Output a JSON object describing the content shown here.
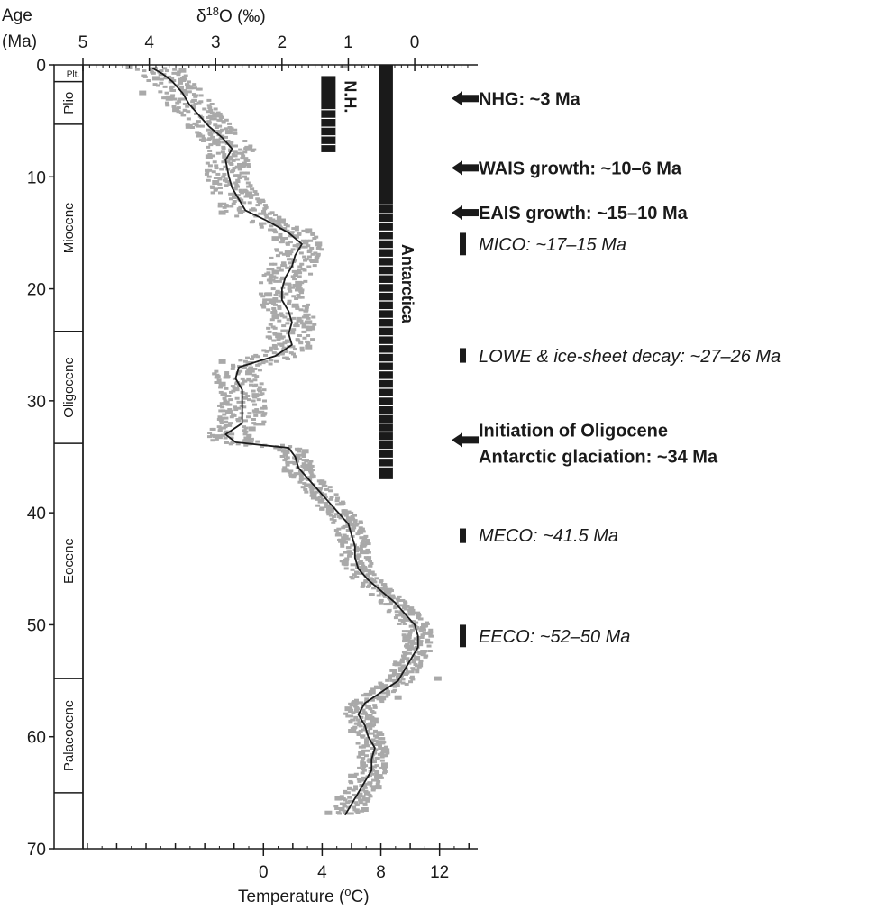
{
  "chart_data": {
    "type": "line",
    "axes": {
      "age_title": "Age",
      "age_unit": "(Ma)",
      "age_ticks": [
        0,
        10,
        20,
        30,
        40,
        50,
        60,
        70
      ],
      "age_range": [
        0,
        70
      ],
      "d18o_prefix": "δ",
      "d18o_sup": "18",
      "d18o_suffix": "O (‰)",
      "d18o_ticks": [
        5,
        4,
        3,
        2,
        1,
        0
      ],
      "d18o_range": [
        5,
        -0.95
      ],
      "temperature_title_prefix": "Temperature (",
      "temperature_title_sup": "o",
      "temperature_title_suffix": "C)",
      "temperature_ticks": [
        0,
        4,
        8,
        12
      ],
      "temperature_range": [
        -12.3,
        14.6
      ]
    },
    "epochs": [
      {
        "name": "Plt.",
        "start": 0,
        "end": 1.5
      },
      {
        "name": "Plio",
        "start": 1.5,
        "end": 5.3
      },
      {
        "name": "Miocene",
        "start": 5.3,
        "end": 23.8
      },
      {
        "name": "Oligocene",
        "start": 23.8,
        "end": 33.8
      },
      {
        "name": "Eocene",
        "start": 33.8,
        "end": 54.8
      },
      {
        "name": "Palaeocene",
        "start": 54.8,
        "end": 65.0
      },
      {
        "name": "",
        "start": 65.0,
        "end": 70
      }
    ],
    "series": [
      {
        "type": "smoothed_line",
        "color": "#1a1a1a",
        "points": [
          [
            0.3,
            3.95
          ],
          [
            0.8,
            3.8
          ],
          [
            1.5,
            3.65
          ],
          [
            2.5,
            3.5
          ],
          [
            3.5,
            3.4
          ],
          [
            4.5,
            3.25
          ],
          [
            5.5,
            3.1
          ],
          [
            6.5,
            2.9
          ],
          [
            7.5,
            2.75
          ],
          [
            8.5,
            2.85
          ],
          [
            10,
            2.8
          ],
          [
            11,
            2.75
          ],
          [
            12,
            2.65
          ],
          [
            13,
            2.55
          ],
          [
            14,
            2.2
          ],
          [
            15,
            1.9
          ],
          [
            16,
            1.7
          ],
          [
            17,
            1.8
          ],
          [
            18,
            1.85
          ],
          [
            19,
            1.95
          ],
          [
            20,
            2.0
          ],
          [
            21,
            2.0
          ],
          [
            22,
            1.9
          ],
          [
            23,
            1.85
          ],
          [
            24,
            1.9
          ],
          [
            25,
            1.85
          ],
          [
            26,
            2.1
          ],
          [
            27,
            2.65
          ],
          [
            28,
            2.7
          ],
          [
            29,
            2.6
          ],
          [
            30,
            2.6
          ],
          [
            31,
            2.6
          ],
          [
            32,
            2.6
          ],
          [
            33,
            2.85
          ],
          [
            33.7,
            2.7
          ],
          [
            34.2,
            1.9
          ],
          [
            35,
            1.8
          ],
          [
            36,
            1.75
          ],
          [
            37,
            1.6
          ],
          [
            38,
            1.45
          ],
          [
            39,
            1.3
          ],
          [
            40,
            1.15
          ],
          [
            41,
            1.0
          ],
          [
            42,
            0.95
          ],
          [
            43,
            0.9
          ],
          [
            44,
            0.9
          ],
          [
            45,
            0.85
          ],
          [
            46,
            0.7
          ],
          [
            47,
            0.5
          ],
          [
            48,
            0.3
          ],
          [
            49,
            0.15
          ],
          [
            50,
            0.0
          ],
          [
            51,
            -0.05
          ],
          [
            52,
            -0.05
          ],
          [
            53,
            0.05
          ],
          [
            54,
            0.15
          ],
          [
            55,
            0.25
          ],
          [
            56,
            0.5
          ],
          [
            57,
            0.75
          ],
          [
            58,
            0.85
          ],
          [
            59,
            0.75
          ],
          [
            60,
            0.7
          ],
          [
            61,
            0.6
          ],
          [
            62,
            0.65
          ],
          [
            63,
            0.65
          ],
          [
            64,
            0.75
          ],
          [
            65,
            0.85
          ],
          [
            66,
            0.95
          ],
          [
            67,
            1.05
          ]
        ]
      },
      {
        "type": "scatter_band",
        "color": "#a9a9a9",
        "points": [
          [
            0.2,
            4.3
          ],
          [
            0.5,
            3.5
          ],
          [
            1.2,
            3.9
          ],
          [
            2,
            3.4
          ],
          [
            2.5,
            4.1
          ],
          [
            3,
            3.7
          ],
          [
            4,
            3.6
          ],
          [
            4.5,
            3.0
          ],
          [
            5.5,
            3.4
          ],
          [
            6,
            2.8
          ],
          [
            6.8,
            3.0
          ],
          [
            7.5,
            2.5
          ],
          [
            8.2,
            3.1
          ],
          [
            9,
            2.6
          ],
          [
            10.5,
            3.0
          ],
          [
            11.5,
            2.5
          ],
          [
            13.2,
            2.9
          ],
          [
            14,
            2.0
          ],
          [
            14.8,
            1.6
          ],
          [
            15.5,
            2.1
          ],
          [
            16,
            1.45
          ],
          [
            16.8,
            1.9
          ],
          [
            17.5,
            1.5
          ],
          [
            18.5,
            2.1
          ],
          [
            19.5,
            1.75
          ],
          [
            20.5,
            2.2
          ],
          [
            21.5,
            1.8
          ],
          [
            22.5,
            2.1
          ],
          [
            23,
            1.6
          ],
          [
            23.5,
            1.55
          ],
          [
            24.2,
            2.05
          ],
          [
            25.2,
            1.6
          ],
          [
            26.5,
            2.9
          ],
          [
            27.5,
            2.5
          ],
          [
            28.5,
            2.9
          ],
          [
            29.5,
            2.4
          ],
          [
            31,
            2.8
          ],
          [
            32.5,
            2.45
          ],
          [
            33.2,
            2.95
          ],
          [
            34.5,
            1.65
          ],
          [
            36.2,
            1.95
          ],
          [
            40,
            1.05
          ],
          [
            41.5,
            0.95
          ],
          [
            42.5,
            1.1
          ],
          [
            43.5,
            0.75
          ],
          [
            44.5,
            1.05
          ],
          [
            47.5,
            0.35
          ],
          [
            49,
            0.05
          ],
          [
            50,
            -0.15
          ],
          [
            51.5,
            0.05
          ],
          [
            52.5,
            -0.1
          ],
          [
            53.5,
            0.25
          ],
          [
            54.8,
            -0.35
          ],
          [
            55.5,
            0.45
          ],
          [
            56.5,
            0.25
          ],
          [
            57.5,
            1.0
          ],
          [
            58.5,
            0.6
          ],
          [
            59.5,
            0.95
          ],
          [
            60.5,
            0.5
          ],
          [
            61.5,
            0.8
          ],
          [
            62.5,
            0.45
          ],
          [
            63.5,
            0.95
          ],
          [
            64.5,
            0.55
          ],
          [
            65.5,
            1.15
          ],
          [
            66.5,
            0.75
          ],
          [
            66.8,
            1.3
          ]
        ]
      }
    ],
    "ice_bars": [
      {
        "label": "N.H.",
        "d18o": 1.3,
        "start": 1.0,
        "end": 7.8
      },
      {
        "label": "Antarctica",
        "d18o": 0.43,
        "start": 0.0,
        "end": 37.0
      }
    ],
    "annotations": [
      {
        "text": "NHG: ~3 Ma",
        "age": 3,
        "marker": "arrow",
        "style": "bold"
      },
      {
        "text": "WAIS growth: ~10–6 Ma",
        "age": 9.2,
        "marker": "arrow",
        "style": "bold"
      },
      {
        "text": "EAIS growth: ~15–10 Ma",
        "age": 13.2,
        "marker": "arrow",
        "style": "bold"
      },
      {
        "text": "MICO: ~17–15 Ma",
        "age": 16,
        "marker": "bar",
        "bar_start": 15,
        "bar_end": 17,
        "style": "italic"
      },
      {
        "text": "LOWE & ice-sheet decay: ~27–26 Ma",
        "age": 26,
        "marker": "bar",
        "bar_start": 25.3,
        "bar_end": 26.6,
        "style": "italic"
      },
      {
        "text": "Initiation of Oligocene",
        "text2": "Antarctic glaciation: ~34 Ma",
        "age": 33.5,
        "marker": "arrow",
        "style": "bold"
      },
      {
        "text": "MECO: ~41.5 Ma",
        "age": 42,
        "marker": "bar",
        "bar_start": 41.4,
        "bar_end": 42.7,
        "style": "italic"
      },
      {
        "text": "EECO: ~52–50 Ma",
        "age": 51,
        "marker": "bar",
        "bar_start": 50,
        "bar_end": 52,
        "style": "italic"
      }
    ]
  }
}
